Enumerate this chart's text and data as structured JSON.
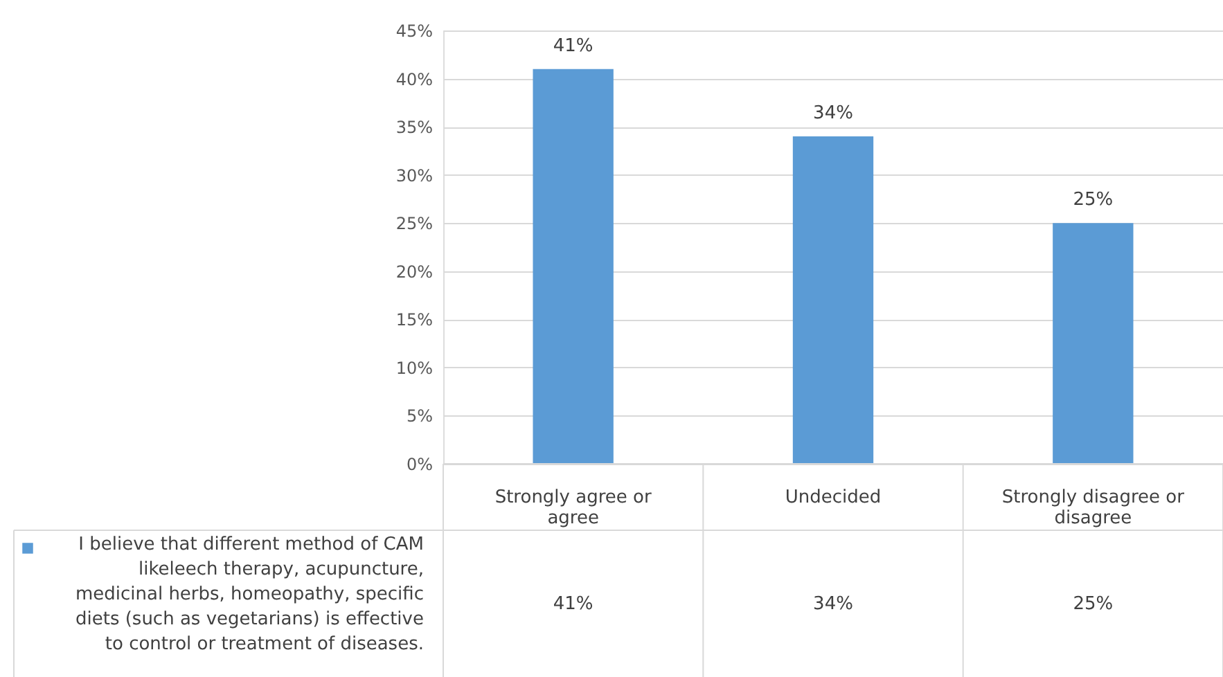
{
  "chart_data": {
    "type": "bar",
    "categories": [
      "Strongly agree or agree",
      "Undecided",
      "Strongly disagree or disagree"
    ],
    "series": [
      {
        "name": "I believe that different method of CAM likeleech therapy, acupuncture, medicinal herbs, homeopathy, specific diets (such as vegetarians) is effective to control or treatment of diseases.",
        "color": "#5b9bd5",
        "values": [
          41,
          34,
          25
        ],
        "value_labels": [
          "41%",
          "34%",
          "25%"
        ]
      }
    ],
    "ylim": [
      0,
      45
    ],
    "yticks": [
      {
        "value": 0,
        "label": "0%"
      },
      {
        "value": 5,
        "label": "5%"
      },
      {
        "value": 10,
        "label": "10%"
      },
      {
        "value": 15,
        "label": "15%"
      },
      {
        "value": 20,
        "label": "20%"
      },
      {
        "value": 25,
        "label": "25%"
      },
      {
        "value": 30,
        "label": "30%"
      },
      {
        "value": 35,
        "label": "35%"
      },
      {
        "value": 40,
        "label": "40%"
      },
      {
        "value": 45,
        "label": "45%"
      }
    ],
    "grid": "y",
    "legend": "bottom left"
  }
}
